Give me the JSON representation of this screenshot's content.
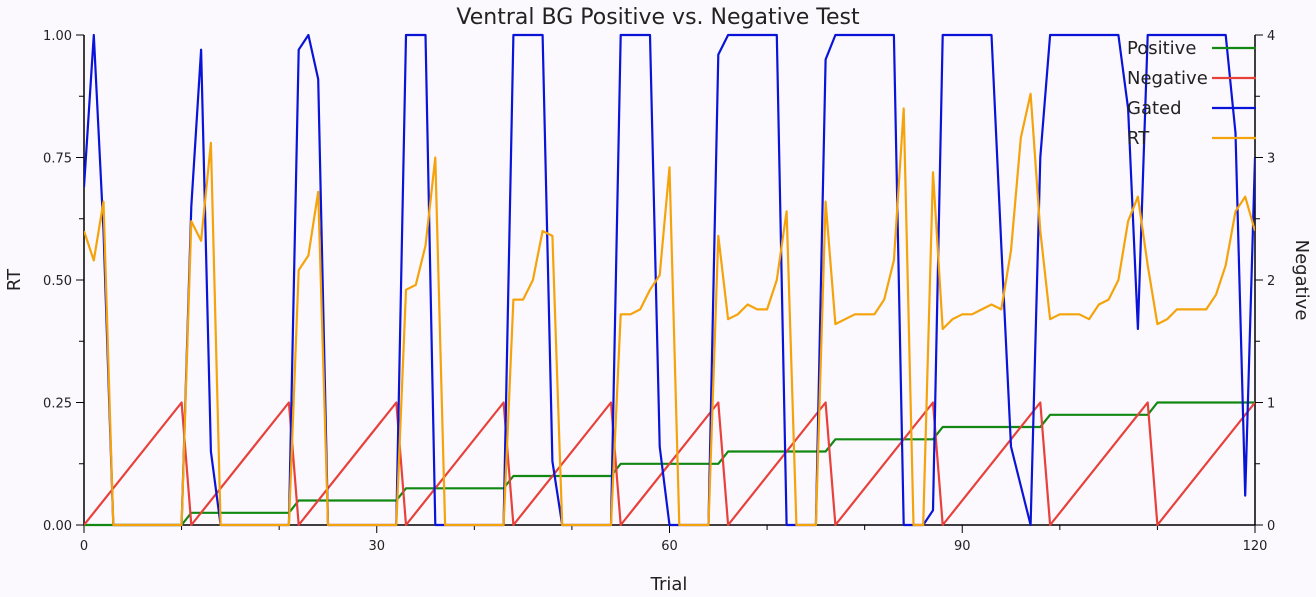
{
  "chart_data": {
    "type": "line",
    "title": "Ventral BG Positive vs. Negative Test",
    "xlabel": "Trial",
    "ylabel_left": "RT",
    "ylabel_right": "Negative",
    "xlim": [
      0,
      120
    ],
    "ylim_left": [
      0,
      1
    ],
    "ylim_right": [
      0,
      4
    ],
    "x_ticks": [
      "0",
      "30",
      "60",
      "90",
      "120"
    ],
    "y_left_ticks": [
      "0.00",
      "0.25",
      "0.50",
      "0.75",
      "1.00"
    ],
    "y_right_ticks": [
      "0",
      "1",
      "2",
      "3",
      "4"
    ],
    "legend_position": "top-right",
    "series": [
      {
        "name": "Positive",
        "color": "#118811",
        "axis": "left",
        "x": [
          0,
          3,
          10,
          11,
          21,
          22,
          32,
          33,
          43,
          44,
          54,
          55,
          65,
          66,
          76,
          77,
          87,
          88,
          98,
          99,
          109,
          110,
          120
        ],
        "y": [
          0,
          0,
          0,
          0.025,
          0.025,
          0.05,
          0.05,
          0.075,
          0.075,
          0.1,
          0.1,
          0.125,
          0.125,
          0.15,
          0.15,
          0.175,
          0.175,
          0.2,
          0.2,
          0.225,
          0.225,
          0.25,
          0.25
        ]
      },
      {
        "name": "Negative",
        "color": "#e8413b",
        "axis": "right",
        "x": [
          0,
          10,
          11,
          21,
          22,
          32,
          33,
          43,
          44,
          54,
          55,
          65,
          66,
          76,
          77,
          87,
          88,
          98,
          99,
          109,
          110,
          120
        ],
        "y": [
          0,
          1,
          0,
          1,
          0,
          1,
          0,
          1,
          0,
          1,
          0,
          1,
          0,
          1,
          0,
          1,
          0,
          1,
          0,
          1,
          0,
          1
        ]
      },
      {
        "name": "Gated",
        "color": "#0a14d8",
        "axis": "left",
        "x": [
          0,
          1,
          2,
          3,
          10,
          11,
          12,
          13,
          14,
          21,
          22,
          23,
          24,
          25,
          32,
          33,
          35,
          36,
          43,
          44,
          47,
          48,
          49,
          54,
          55,
          58,
          59,
          60,
          61,
          64,
          65,
          66,
          70,
          71,
          72,
          75,
          76,
          77,
          83,
          84,
          86,
          87,
          88,
          93,
          94,
          95,
          97,
          98,
          99,
          102,
          104,
          105,
          106,
          107,
          108,
          109,
          110,
          113,
          114,
          115,
          116,
          117,
          118,
          119,
          120
        ],
        "y": [
          0.69,
          1.0,
          0.6,
          0,
          0,
          0.65,
          0.97,
          0.15,
          0,
          0,
          0.97,
          1.0,
          0.91,
          0,
          0,
          1.0,
          1.0,
          0,
          0,
          1.0,
          1.0,
          0.13,
          0,
          0,
          1.0,
          1.0,
          0.16,
          0,
          0,
          0,
          0.96,
          1.0,
          1.0,
          1.0,
          0,
          0,
          0.95,
          1.0,
          1.0,
          0,
          0,
          0.03,
          1.0,
          1.0,
          0.57,
          0.16,
          0,
          0.75,
          1.0,
          1.0,
          1.0,
          1.0,
          1.0,
          0.85,
          0.4,
          1.0,
          1.0,
          1.0,
          1.0,
          1.0,
          1.0,
          1.0,
          0.8,
          0.06,
          0.75
        ]
      },
      {
        "name": "RT",
        "color": "#f5a30a",
        "axis": "left",
        "x": [
          0,
          1,
          2,
          3,
          10,
          11,
          12,
          13,
          14,
          21,
          22,
          23,
          24,
          25,
          32,
          33,
          34,
          35,
          36,
          37,
          43,
          44,
          45,
          46,
          47,
          48,
          49,
          54,
          55,
          56,
          57,
          58,
          59,
          60,
          61,
          64,
          65,
          66,
          67,
          68,
          69,
          70,
          71,
          72,
          73,
          75,
          76,
          77,
          78,
          79,
          80,
          81,
          82,
          83,
          84,
          85,
          86,
          87,
          88,
          89,
          90,
          91,
          92,
          93,
          94,
          95,
          96,
          97,
          98,
          99,
          100,
          101,
          102,
          103,
          104,
          105,
          106,
          107,
          108,
          109,
          110,
          111,
          112,
          113,
          114,
          115,
          116,
          117,
          118,
          119,
          120
        ],
        "y": [
          0.6,
          0.54,
          0.66,
          0,
          0,
          0.62,
          0.58,
          0.78,
          0,
          0,
          0.52,
          0.55,
          0.68,
          0,
          0,
          0.48,
          0.49,
          0.57,
          0.75,
          0,
          0,
          0.46,
          0.46,
          0.5,
          0.6,
          0.59,
          0,
          0,
          0.43,
          0.43,
          0.44,
          0.48,
          0.51,
          0.73,
          0,
          0,
          0.59,
          0.42,
          0.43,
          0.45,
          0.44,
          0.44,
          0.5,
          0.64,
          0,
          0,
          0.66,
          0.41,
          0.42,
          0.43,
          0.43,
          0.43,
          0.46,
          0.54,
          0.85,
          0,
          0,
          0.72,
          0.4,
          0.42,
          0.43,
          0.43,
          0.44,
          0.45,
          0.44,
          0.56,
          0.79,
          0.88,
          0.6,
          0.42,
          0.43,
          0.43,
          0.43,
          0.42,
          0.45,
          0.46,
          0.5,
          0.62,
          0.67,
          0.53,
          0.41,
          0.42,
          0.44,
          0.44,
          0.44,
          0.44,
          0.47,
          0.53,
          0.64,
          0.67,
          0.6
        ]
      }
    ]
  }
}
